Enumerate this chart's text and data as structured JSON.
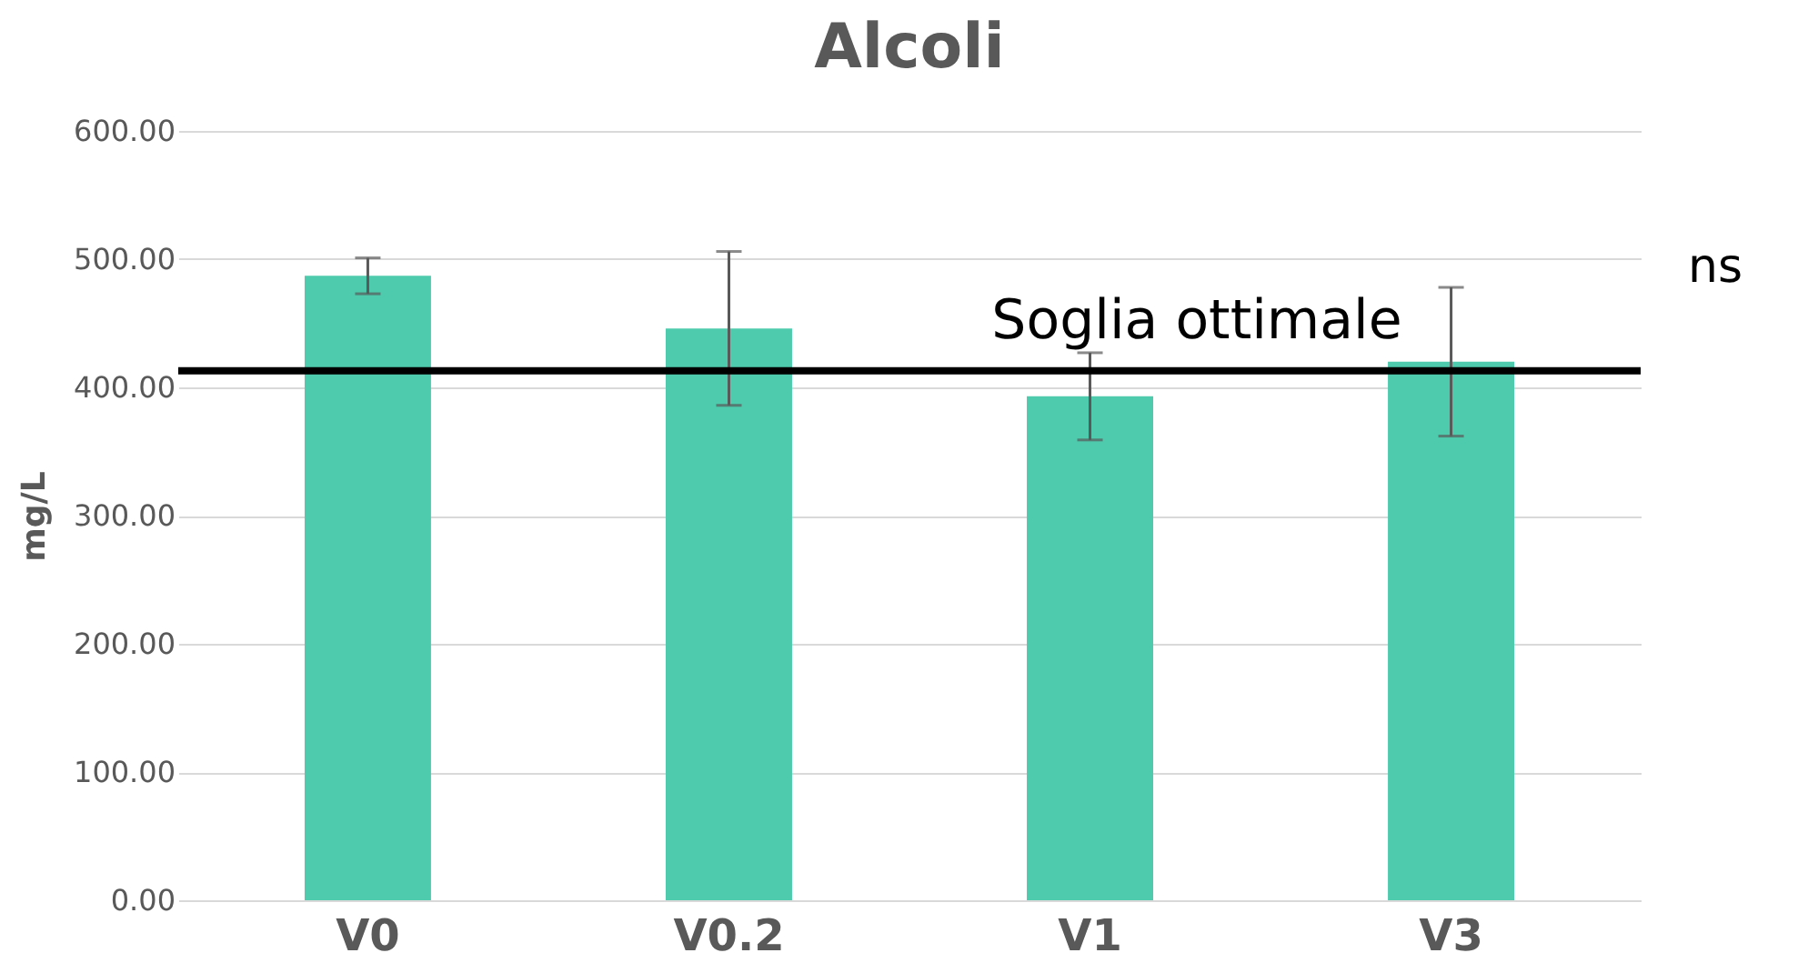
{
  "chart_data": {
    "type": "bar",
    "title": "Alcoli",
    "ylabel": "mg/L",
    "categories": [
      "V0",
      "V0.2",
      "V1",
      "V3"
    ],
    "values": [
      487,
      446,
      393,
      420
    ],
    "errors": [
      14,
      60,
      34,
      58
    ],
    "color": "#4ecbad",
    "ylim": [
      0,
      600
    ],
    "yticks": [
      {
        "value": 0,
        "label": "0.00"
      },
      {
        "value": 100,
        "label": "100.00"
      },
      {
        "value": 200,
        "label": "200.00"
      },
      {
        "value": 300,
        "label": "300.00"
      },
      {
        "value": 400,
        "label": "400.00"
      },
      {
        "value": 500,
        "label": "500.00"
      },
      {
        "value": 600,
        "label": "600.00"
      }
    ],
    "grid": "y",
    "ref_lines": [
      {
        "axis": "y",
        "value": 413,
        "label": "Soglia ottimale",
        "color": "#000000"
      }
    ],
    "annotations": [
      "ns"
    ]
  }
}
